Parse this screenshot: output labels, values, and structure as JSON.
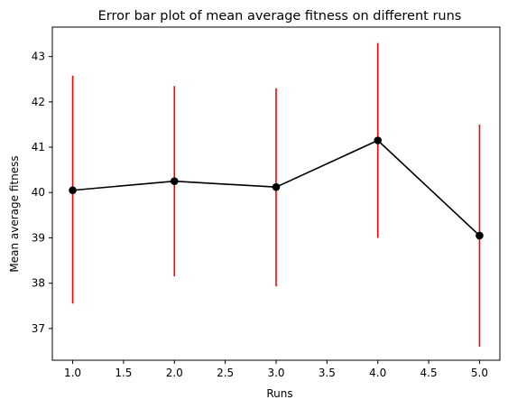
{
  "chart_data": {
    "type": "line",
    "title": "Error bar plot of mean average fitness on different runs",
    "xlabel": "Runs",
    "ylabel": "Mean average fitness",
    "xlim": [
      0.8,
      5.2
    ],
    "ylim": [
      36.3,
      43.65
    ],
    "xticks": [
      1.0,
      1.5,
      2.0,
      2.5,
      3.0,
      3.5,
      4.0,
      4.5,
      5.0
    ],
    "xtick_labels": [
      "1.0",
      "1.5",
      "2.0",
      "2.5",
      "3.0",
      "3.5",
      "4.0",
      "4.5",
      "5.0"
    ],
    "yticks": [
      37,
      38,
      39,
      40,
      41,
      42,
      43
    ],
    "ytick_labels": [
      "37",
      "38",
      "39",
      "40",
      "41",
      "42",
      "43"
    ],
    "grid": false,
    "series": [
      {
        "x": [
          1,
          2,
          3,
          4,
          5
        ],
        "y": [
          40.05,
          40.25,
          40.12,
          41.15,
          39.05
        ],
        "yerr_low": [
          37.55,
          38.15,
          37.93,
          39.0,
          36.6
        ],
        "yerr_high": [
          42.58,
          42.35,
          42.3,
          43.3,
          41.5
        ],
        "line_color": "#000000",
        "marker_color": "#000000",
        "errorbar_color": "#ff0000"
      }
    ]
  }
}
